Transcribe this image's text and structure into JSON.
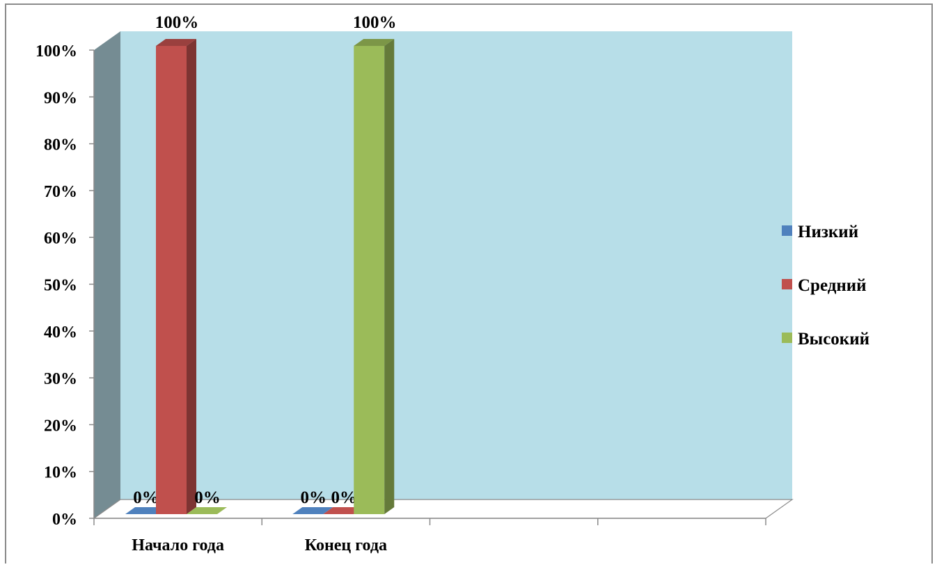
{
  "chart_data": {
    "type": "bar",
    "style": "3d-clustered-column",
    "categories": [
      "Начало года",
      "Конец года",
      "",
      ""
    ],
    "series": [
      {
        "name": "Низкий",
        "color": "#4F81BD",
        "values": [
          0,
          0,
          null,
          null
        ],
        "labels": [
          "0%",
          "0%",
          "",
          ""
        ]
      },
      {
        "name": "Средний",
        "color": "#C0504D",
        "values": [
          100,
          0,
          null,
          null
        ],
        "labels": [
          "100%",
          "0%",
          "",
          ""
        ]
      },
      {
        "name": "Высокий",
        "color": "#9BBB59",
        "values": [
          0,
          100,
          null,
          null
        ],
        "labels": [
          "0%",
          "100%",
          "",
          ""
        ]
      }
    ],
    "y_ticks": [
      "0%",
      "10%",
      "20%",
      "30%",
      "40%",
      "50%",
      "60%",
      "70%",
      "80%",
      "90%",
      "100%"
    ],
    "ylim": [
      0,
      100
    ],
    "y_unit": "%",
    "legend_position": "right",
    "colors": {
      "back_wall": "#B7DEE8",
      "side_wall": "#758C93",
      "floor": "#FFFFFF",
      "axis": "#8A8A8A"
    }
  }
}
